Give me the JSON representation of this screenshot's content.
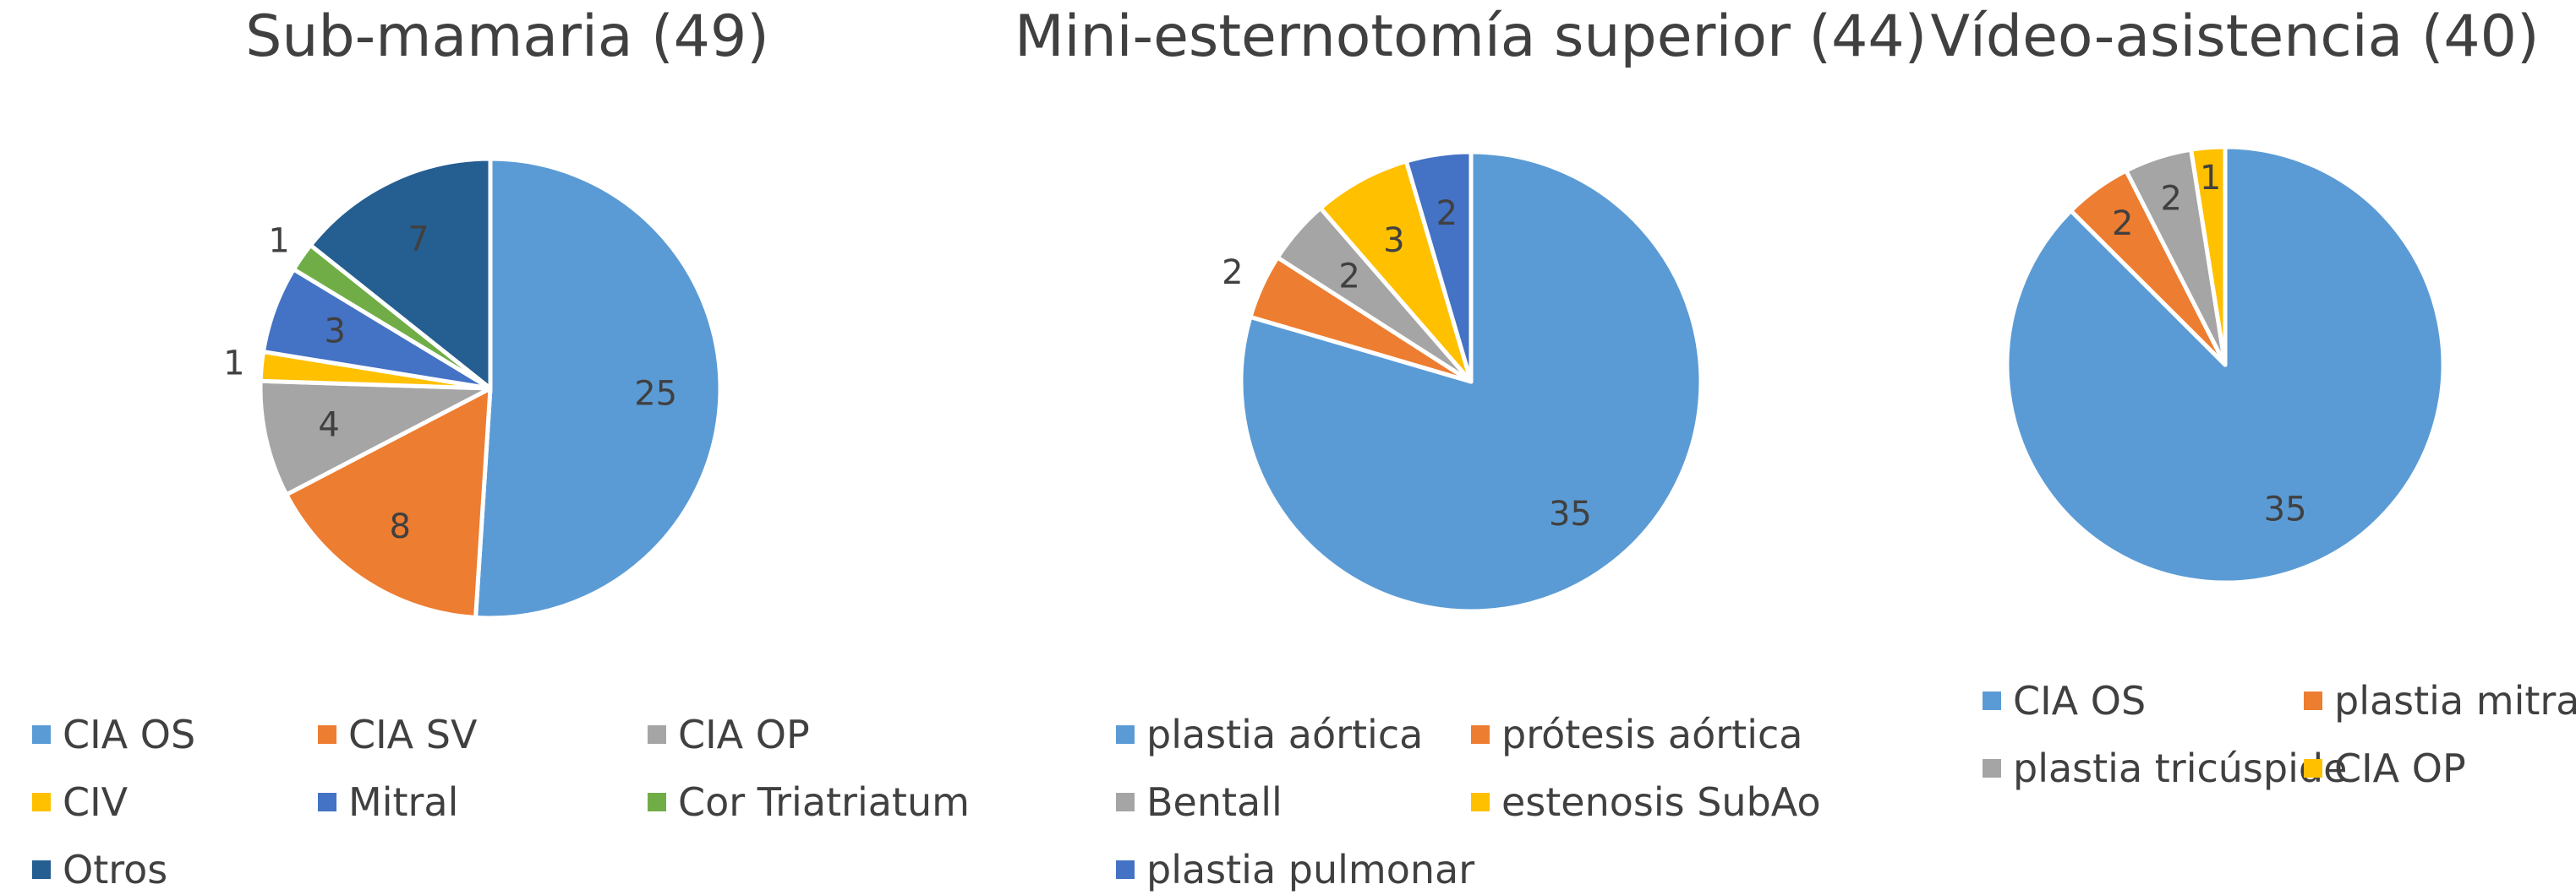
{
  "chart_data": [
    {
      "type": "pie",
      "title": "Sub-mamaria (49)",
      "categories": [
        "CIA OS",
        "CIA SV",
        "CIA OP",
        "CIV",
        "Mitral",
        "Cor Triatriatum",
        "Otros"
      ],
      "values": [
        25,
        8,
        4,
        1,
        3,
        1,
        7
      ],
      "colors": [
        "#5B9BD5",
        "#ED7D31",
        "#A5A5A5",
        "#FFC000",
        "#4472C4",
        "#70AD47",
        "#255E91"
      ],
      "data_labels": [
        "25",
        "8",
        "4",
        "1",
        "3",
        "1",
        "7"
      ],
      "legend_position": "bottom"
    },
    {
      "type": "pie",
      "title": "Mini-esternotomía superior (44)",
      "categories": [
        "plastia aórtica",
        "prótesis aórtica",
        "Bentall",
        "estenosis SubAo",
        "plastia pulmonar"
      ],
      "values": [
        35,
        2,
        2,
        3,
        2
      ],
      "colors": [
        "#5B9BD5",
        "#ED7D31",
        "#A5A5A5",
        "#FFC000",
        "#4472C4"
      ],
      "data_labels": [
        "35",
        "2",
        "2",
        "3",
        "2"
      ],
      "legend_position": "bottom"
    },
    {
      "type": "pie",
      "title": "Vídeo-asistencia (40)",
      "categories": [
        "CIA OS",
        "plastia mitral",
        "plastia tricúspide",
        "CIA OP"
      ],
      "values": [
        35,
        2,
        2,
        1
      ],
      "colors": [
        "#5B9BD5",
        "#ED7D31",
        "#A5A5A5",
        "#FFC000"
      ],
      "data_labels": [
        "35",
        "2",
        "2",
        "1"
      ],
      "legend_position": "bottom"
    }
  ]
}
